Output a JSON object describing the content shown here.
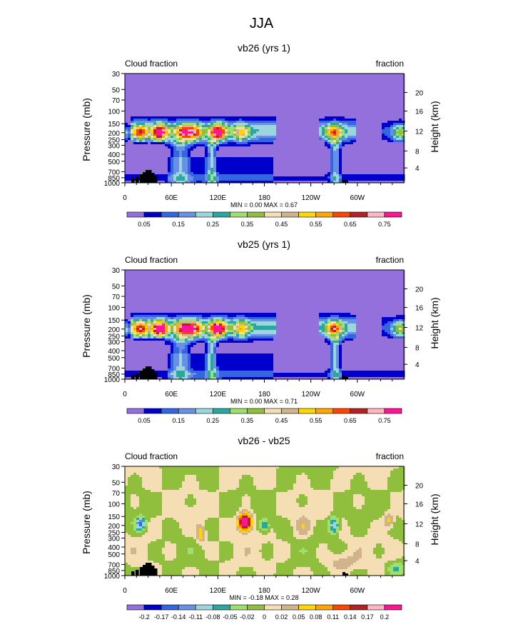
{
  "figure": {
    "title": "JJA"
  },
  "colors": {
    "background_fill": "#9370db",
    "levels_abs": [
      "#9370db",
      "#0000cd",
      "#3366e0",
      "#6a8fe8",
      "#9ad6dc",
      "#2aa7a3",
      "#9de070",
      "#8fbf3c",
      "#f5deb3",
      "#d2b48c",
      "#ffd700",
      "#ffa500",
      "#ff4500",
      "#b22222",
      "#ffb6c1",
      "#ff1493"
    ],
    "levels_diff": [
      "#9370db",
      "#0000cd",
      "#3366e0",
      "#6a8fe8",
      "#9ad6dc",
      "#2aa7a3",
      "#9de070",
      "#8fbf3c",
      "#f5deb3",
      "#d2b48c",
      "#ffd700",
      "#ffa500",
      "#ff4500",
      "#b22222",
      "#ffb6c1",
      "#ff1493"
    ],
    "land_mask": "#000000"
  },
  "chart_data": [
    {
      "type": "heatmap",
      "title": "vb26 (yrs 1)",
      "left_label": "Cloud fraction",
      "right_label": "fraction",
      "ylabel": "Pressure (mb)",
      "y2label": "Height (km)",
      "x_ticks": [
        "0",
        "60E",
        "120E",
        "180",
        "120W",
        "60W"
      ],
      "y_ticks": [
        "30",
        "50",
        "70",
        "100",
        "150",
        "200",
        "250",
        "300",
        "400",
        "500",
        "700",
        "850",
        "1000"
      ],
      "y2_ticks": [
        "20",
        "16",
        "12",
        "8",
        "4"
      ],
      "min_max": "MIN =   0.00  MAX =   0.67",
      "colorbar_labels": [
        "0.05",
        "0.15",
        "0.25",
        "0.35",
        "0.45",
        "0.55",
        "0.65",
        "0.75"
      ],
      "levels": [
        0.05,
        0.1,
        0.15,
        0.2,
        0.25,
        0.3,
        0.35,
        0.4,
        0.45,
        0.5,
        0.55,
        0.6,
        0.65,
        0.7,
        0.75
      ],
      "min": 0.0,
      "max": 0.67,
      "grid": false
    },
    {
      "type": "heatmap",
      "title": "vb25 (yrs 1)",
      "left_label": "Cloud fraction",
      "right_label": "fraction",
      "ylabel": "Pressure (mb)",
      "y2label": "Height (km)",
      "x_ticks": [
        "0",
        "60E",
        "120E",
        "180",
        "120W",
        "60W"
      ],
      "y_ticks": [
        "30",
        "50",
        "70",
        "100",
        "150",
        "200",
        "250",
        "300",
        "400",
        "500",
        "700",
        "850",
        "1000"
      ],
      "y2_ticks": [
        "20",
        "16",
        "12",
        "8",
        "4"
      ],
      "min_max": "MIN =   0.00  MAX =   0.71",
      "colorbar_labels": [
        "0.05",
        "0.15",
        "0.25",
        "0.35",
        "0.45",
        "0.55",
        "0.65",
        "0.75"
      ],
      "levels": [
        0.05,
        0.1,
        0.15,
        0.2,
        0.25,
        0.3,
        0.35,
        0.4,
        0.45,
        0.5,
        0.55,
        0.6,
        0.65,
        0.7,
        0.75
      ],
      "min": 0.0,
      "max": 0.71,
      "grid": false
    },
    {
      "type": "heatmap",
      "title": "vb26 - vb25",
      "left_label": "Cloud fraction",
      "right_label": "fraction",
      "ylabel": "Pressure (mb)",
      "y2label": "Height (km)",
      "x_ticks": [
        "0",
        "60E",
        "120E",
        "180",
        "120W",
        "60W"
      ],
      "y_ticks": [
        "30",
        "50",
        "70",
        "100",
        "150",
        "200",
        "250",
        "300",
        "400",
        "500",
        "700",
        "850",
        "1000"
      ],
      "y2_ticks": [
        "20",
        "16",
        "12",
        "8",
        "4"
      ],
      "min_max": "MIN =  -0.18  MAX =   0.28",
      "colorbar_labels": [
        "-0.2",
        "-0.17",
        "-0.14",
        "-0.11",
        "-0.08",
        "-0.05",
        "-0.02",
        "0",
        "0.02",
        "0.05",
        "0.08",
        "0.11",
        "0.14",
        "0.17",
        "0.2"
      ],
      "levels": [
        -0.2,
        -0.17,
        -0.14,
        -0.11,
        -0.08,
        -0.05,
        -0.02,
        0,
        0.02,
        0.05,
        0.08,
        0.11,
        0.14,
        0.17,
        0.2
      ],
      "min": -0.18,
      "max": 0.28,
      "grid": false
    }
  ]
}
